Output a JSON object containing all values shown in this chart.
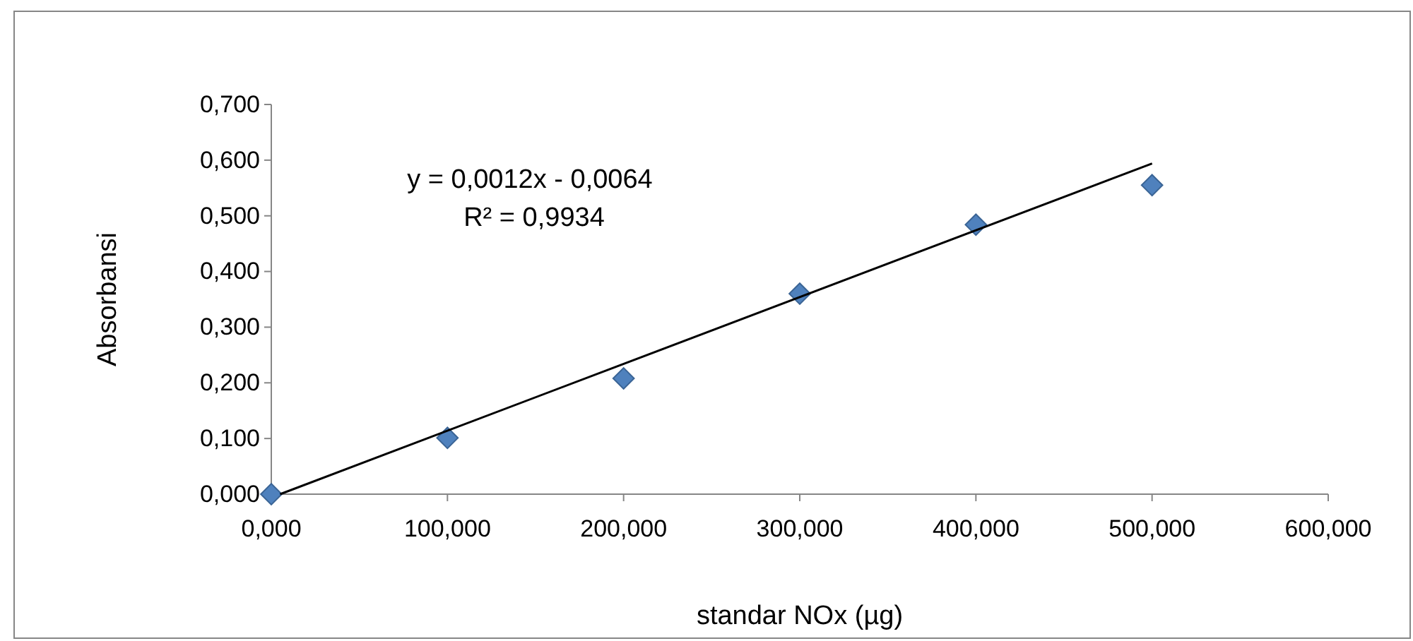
{
  "chart_data": {
    "type": "scatter",
    "xlabel": "standar NOx (µg)",
    "ylabel": "Absorbansi",
    "xlim": [
      0,
      600
    ],
    "xticks": [
      {
        "value": 0,
        "label": "0,000"
      },
      {
        "value": 100,
        "label": "100,000"
      },
      {
        "value": 200,
        "label": "200,000"
      },
      {
        "value": 300,
        "label": "300,000"
      },
      {
        "value": 400,
        "label": "400,000"
      },
      {
        "value": 500,
        "label": "500,000"
      },
      {
        "value": 600,
        "label": "600,000"
      }
    ],
    "ylim": [
      0,
      0.7
    ],
    "yticks": [
      {
        "value": 0,
        "label": "0,000"
      },
      {
        "value": 0.1,
        "label": "0,100"
      },
      {
        "value": 0.2,
        "label": "0,200"
      },
      {
        "value": 0.3,
        "label": "0,300"
      },
      {
        "value": 0.4,
        "label": "0,400"
      },
      {
        "value": 0.5,
        "label": "0,500"
      },
      {
        "value": 0.6,
        "label": "0,600"
      },
      {
        "value": 0.7,
        "label": "0,700"
      }
    ],
    "grid": false,
    "series": [
      {
        "marker": "diamond",
        "color": "#4f81bd",
        "x": [
          0,
          100,
          200,
          300,
          400,
          500
        ],
        "values": [
          0,
          0.101,
          0.208,
          0.36,
          0.484,
          0.555
        ]
      },
      {
        "type": "line",
        "color": "#000000",
        "x": [
          5,
          500
        ],
        "values": [
          0,
          0.594
        ]
      }
    ],
    "annotations": [
      "y = 0,0012x - 0,0064",
      "R² = 0,9934"
    ]
  }
}
